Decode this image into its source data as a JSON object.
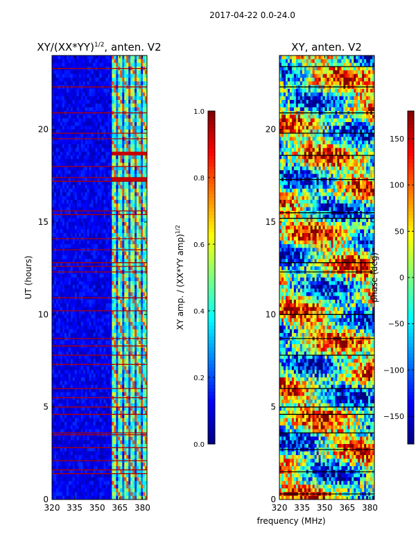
{
  "figure_title": "2017-04-22 0.0-24.0",
  "colors": {
    "jet": [
      "#00007f",
      "#0000ff",
      "#007fff",
      "#00ffff",
      "#7fff7f",
      "#ffff00",
      "#ff7f00",
      "#ff0000",
      "#7f0000"
    ],
    "band": "#b00000"
  },
  "chart_data": [
    {
      "type": "heatmap",
      "title": "XY/(XX*YY)",
      "title_sup": "1/2",
      "title_suffix": ", anten. V2",
      "xlabel": "",
      "ylabel": "UT (hours)",
      "xlim": [
        320,
        383
      ],
      "ylim": [
        0,
        24
      ],
      "x_ticks": [
        "320",
        "335",
        "350",
        "365",
        "380"
      ],
      "x_tick_values": [
        320,
        335,
        350,
        365,
        380
      ],
      "y_ticks": [
        "0",
        "5",
        "10",
        "15",
        "20"
      ],
      "y_tick_values": [
        0,
        5,
        10,
        15,
        20
      ],
      "colorbar": {
        "label": "XY amp. / (XX*YY amp)",
        "label_sup": "1/2",
        "range": [
          0.0,
          1.0
        ],
        "ticks": [
          "0.0",
          "0.2",
          "0.4",
          "0.6",
          "0.8",
          "1.0"
        ],
        "tick_values": [
          0.0,
          0.2,
          0.4,
          0.6,
          0.8,
          1.0
        ]
      },
      "high_freq_start_mhz": 360,
      "bright_hours": [
        18.7,
        17.3
      ],
      "flagged_hours": [
        1.4,
        1.6,
        2.1,
        2.8,
        3.5,
        3.6,
        4.6,
        5.0,
        5.5,
        6.0,
        7.3,
        7.8,
        8.3,
        8.7,
        10.2,
        10.9,
        12.3,
        12.6,
        12.8,
        13.5,
        14.1,
        15.4,
        15.6,
        17.2,
        17.4,
        18.0,
        19.5,
        19.8,
        20.9,
        22.3,
        23.3
      ]
    },
    {
      "type": "heatmap",
      "title": "XY, anten. V2",
      "xlabel": "frequency (MHz)",
      "ylabel": "",
      "xlim": [
        320,
        383
      ],
      "ylim": [
        0,
        24
      ],
      "x_ticks": [
        "320",
        "335",
        "350",
        "365",
        "380"
      ],
      "x_tick_values": [
        320,
        335,
        350,
        365,
        380
      ],
      "y_ticks": [
        "0",
        "5",
        "10",
        "15",
        "20"
      ],
      "y_tick_values": [
        0,
        5,
        10,
        15,
        20
      ],
      "colorbar": {
        "label": "phase (deg)",
        "range": [
          -180,
          180
        ],
        "ticks": [
          "−150",
          "−100",
          "−50",
          "0",
          "50",
          "100",
          "150"
        ],
        "tick_values": [
          -150,
          -100,
          -50,
          0,
          50,
          100,
          150
        ]
      },
      "flagged_hours": [
        0.3,
        1.5,
        2.7,
        3.6,
        4.6,
        5.0,
        6.0,
        7.8,
        8.7,
        10.0,
        12.3,
        12.8,
        15.2,
        15.5,
        17.3,
        18.6,
        19.8,
        20.9,
        22.3,
        23.4
      ]
    }
  ]
}
